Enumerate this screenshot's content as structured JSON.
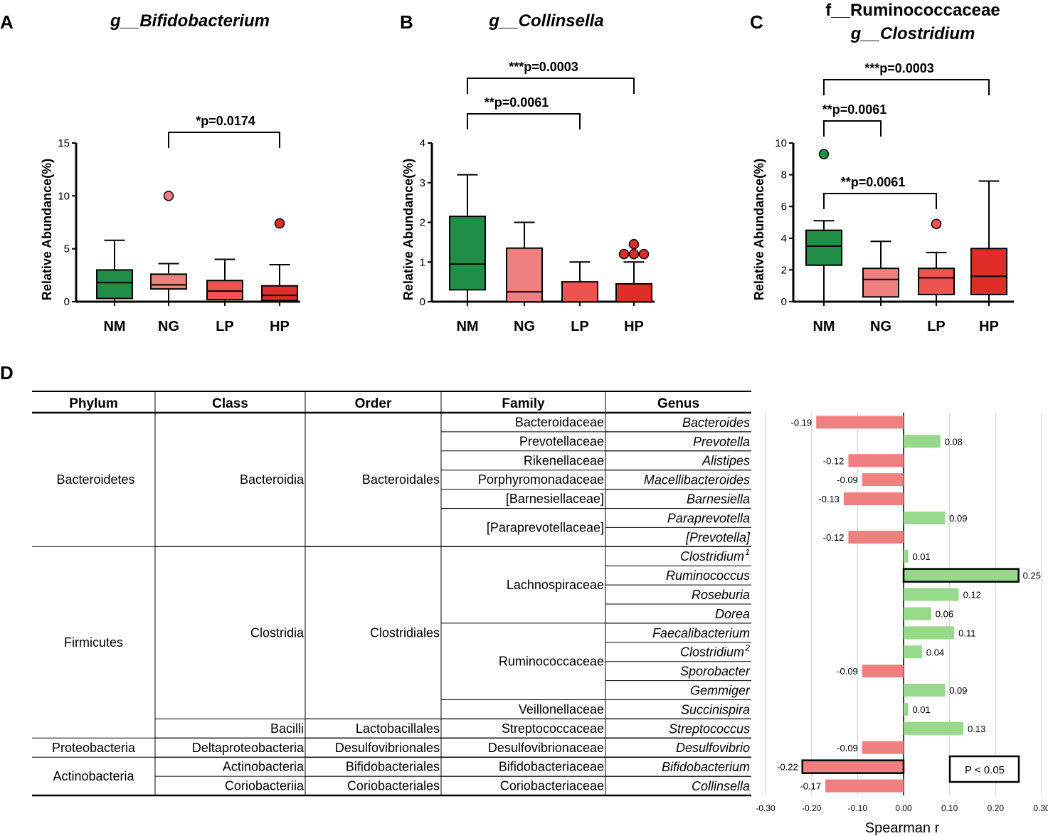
{
  "colors": {
    "NM": "#1f8f48",
    "NG": "#f08080",
    "LP": "#ef5350",
    "HP": "#e02d28",
    "neg": "#f08080",
    "pos": "#96d98a"
  },
  "panel_labels": [
    "A",
    "B",
    "C",
    "D"
  ],
  "chart_data": [
    {
      "type": "box",
      "panel": "A",
      "title_lines": [
        "g__Bifidobacterium"
      ],
      "title_italic": [
        true
      ],
      "ylabel": "Relative Abundance(%)",
      "ylim": [
        0,
        15
      ],
      "yticks": [
        0,
        5,
        10,
        15
      ],
      "ytick_labels": [
        "0",
        "5",
        "10",
        "15"
      ],
      "categories": [
        "NM",
        "NG",
        "LP",
        "HP"
      ],
      "boxes": [
        {
          "group": "NM",
          "min": 0,
          "q1": 0.3,
          "median": 1.8,
          "q3": 3.0,
          "max": 5.8,
          "outliers": []
        },
        {
          "group": "NG",
          "min": 0,
          "q1": 1.2,
          "median": 1.6,
          "q3": 2.6,
          "max": 3.6,
          "outliers": [
            10.0
          ]
        },
        {
          "group": "LP",
          "min": 0,
          "q1": 0.2,
          "median": 1.0,
          "q3": 2.0,
          "max": 4.0,
          "outliers": []
        },
        {
          "group": "HP",
          "min": 0,
          "q1": 0.1,
          "median": 0.6,
          "q3": 1.5,
          "max": 3.5,
          "outliers": [
            7.4
          ]
        }
      ],
      "significance": [
        {
          "from": "NG",
          "to": "HP",
          "label": "*p=0.0174",
          "level": 1
        }
      ]
    },
    {
      "type": "box",
      "panel": "B",
      "title_lines": [
        "g__Collinsella"
      ],
      "title_italic": [
        true
      ],
      "ylabel": "Relative Abundance(%)",
      "ylim": [
        0,
        4
      ],
      "yticks": [
        0,
        1,
        2,
        3,
        4
      ],
      "ytick_labels": [
        "0",
        "1",
        "2",
        "3",
        "4"
      ],
      "categories": [
        "NM",
        "NG",
        "LP",
        "HP"
      ],
      "boxes": [
        {
          "group": "NM",
          "min": 0,
          "q1": 0.3,
          "median": 0.95,
          "q3": 2.15,
          "max": 3.2,
          "outliers": []
        },
        {
          "group": "NG",
          "min": 0,
          "q1": 0.0,
          "median": 0.25,
          "q3": 1.35,
          "max": 2.0,
          "outliers": []
        },
        {
          "group": "LP",
          "min": 0,
          "q1": 0.0,
          "median": 0.0,
          "q3": 0.5,
          "max": 1.0,
          "outliers": []
        },
        {
          "group": "HP",
          "min": 0,
          "q1": 0.0,
          "median": 0.0,
          "q3": 0.45,
          "max": 1.0,
          "outliers": [
            1.2,
            1.2,
            1.2,
            1.45
          ]
        }
      ],
      "significance": [
        {
          "from": "NM",
          "to": "LP",
          "label": "**p=0.0061",
          "level": 1
        },
        {
          "from": "NM",
          "to": "HP",
          "label": "***p=0.0003",
          "level": 2
        }
      ]
    },
    {
      "type": "box",
      "panel": "C",
      "title_lines": [
        "f__Ruminococcaceae",
        "g__Clostridium"
      ],
      "title_italic": [
        false,
        true
      ],
      "ylabel": "Relative Abundance(%)",
      "ylim": [
        0,
        10
      ],
      "yticks": [
        0,
        2,
        4,
        6,
        8,
        10
      ],
      "ytick_labels": [
        "0",
        "2",
        "4",
        "6",
        "8",
        "10"
      ],
      "categories": [
        "NM",
        "NG",
        "LP",
        "HP"
      ],
      "boxes": [
        {
          "group": "NM",
          "min": 0,
          "q1": 2.3,
          "median": 3.5,
          "q3": 4.5,
          "max": 5.1,
          "outliers": [
            9.3
          ]
        },
        {
          "group": "NG",
          "min": 0,
          "q1": 0.3,
          "median": 1.4,
          "q3": 2.1,
          "max": 3.8,
          "outliers": []
        },
        {
          "group": "LP",
          "min": 0,
          "q1": 0.45,
          "median": 1.5,
          "q3": 2.1,
          "max": 3.1,
          "outliers": [
            4.9
          ]
        },
        {
          "group": "HP",
          "min": 0,
          "q1": 0.45,
          "median": 1.6,
          "q3": 3.35,
          "max": 7.6,
          "outliers": []
        }
      ],
      "significance": [
        {
          "from": "NM",
          "to": "LP",
          "label": "**p=0.0061",
          "level": 1
        },
        {
          "from": "NM",
          "to": "NG",
          "label": "**p=0.0061",
          "level": 2
        },
        {
          "from": "NM",
          "to": "HP",
          "label": "***p=0.0003",
          "level": 3
        }
      ]
    },
    {
      "type": "table",
      "panel": "D",
      "columns": [
        "Phylum",
        "Class",
        "Order",
        "Family",
        "Genus"
      ],
      "groups": {
        "phylum": [
          {
            "label": "Bacteroidetes",
            "rows": [
              0,
              6
            ]
          },
          {
            "label": "Firmicutes",
            "rows": [
              7,
              16
            ]
          },
          {
            "label": "Proteobacteria",
            "rows": [
              17,
              17
            ]
          },
          {
            "label": "Actinobacteria",
            "rows": [
              18,
              19
            ]
          }
        ],
        "class": [
          {
            "label": "Bacteroidia",
            "rows": [
              0,
              6
            ]
          },
          {
            "label": "Clostridia",
            "rows": [
              7,
              15
            ]
          },
          {
            "label": "Bacilli",
            "rows": [
              16,
              16
            ]
          },
          {
            "label": "Deltaproteobacteria",
            "rows": [
              17,
              17
            ]
          },
          {
            "label": "Actinobacteria",
            "rows": [
              18,
              18
            ]
          },
          {
            "label": "Coriobacteriia",
            "rows": [
              19,
              19
            ]
          }
        ],
        "order": [
          {
            "label": "Bacteroidales",
            "rows": [
              0,
              6
            ]
          },
          {
            "label": "Clostridiales",
            "rows": [
              7,
              15
            ]
          },
          {
            "label": "Lactobacillales",
            "rows": [
              16,
              16
            ]
          },
          {
            "label": "Desulfovibrionales",
            "rows": [
              17,
              17
            ]
          },
          {
            "label": "Bifidobacteriales",
            "rows": [
              18,
              18
            ]
          },
          {
            "label": "Coriobacteriales",
            "rows": [
              19,
              19
            ]
          }
        ],
        "family": [
          {
            "label": "Bacteroidaceae",
            "rows": [
              0,
              0
            ]
          },
          {
            "label": "Prevotellaceae",
            "rows": [
              1,
              1
            ]
          },
          {
            "label": "Rikenellaceae",
            "rows": [
              2,
              2
            ]
          },
          {
            "label": "Porphyromonadaceae",
            "rows": [
              3,
              3
            ]
          },
          {
            "label": "[Barnesiellaceae]",
            "rows": [
              4,
              4
            ]
          },
          {
            "label": "[Paraprevotellaceae]",
            "rows": [
              5,
              6
            ]
          },
          {
            "label": "Lachnospiraceae",
            "rows": [
              7,
              10
            ]
          },
          {
            "label": "Ruminococcaceae",
            "rows": [
              11,
              14
            ]
          },
          {
            "label": "Veillonellaceae",
            "rows": [
              15,
              15
            ]
          },
          {
            "label": "Streptococcaceae",
            "rows": [
              16,
              16
            ]
          },
          {
            "label": "Desulfovibrionaceae",
            "rows": [
              17,
              17
            ]
          },
          {
            "label": "Bifidobacteriaceae",
            "rows": [
              18,
              18
            ]
          },
          {
            "label": "Coriobacteriaceae",
            "rows": [
              19,
              19
            ]
          }
        ]
      },
      "genus": [
        {
          "name": "Bacteroides",
          "sup": "",
          "r": -0.19,
          "label": "-0.19",
          "highlight": false
        },
        {
          "name": "Prevotella",
          "sup": "",
          "r": 0.08,
          "label": "0.08",
          "highlight": false
        },
        {
          "name": "Alistipes",
          "sup": "",
          "r": -0.12,
          "label": "-0.12",
          "highlight": false
        },
        {
          "name": "Macellibacteroides",
          "sup": "",
          "r": -0.09,
          "label": "-0.09",
          "highlight": false
        },
        {
          "name": "Barnesiella",
          "sup": "",
          "r": -0.13,
          "label": "-0.13",
          "highlight": false
        },
        {
          "name": "Paraprevotella",
          "sup": "",
          "r": 0.09,
          "label": "0.09",
          "highlight": false
        },
        {
          "name": "[Prevotella]",
          "sup": "",
          "r": -0.12,
          "label": "-0.12",
          "highlight": false
        },
        {
          "name": "Clostridium",
          "sup": "1",
          "r": 0.01,
          "label": "0.01",
          "highlight": false
        },
        {
          "name": "Ruminococcus",
          "sup": "",
          "r": 0.25,
          "label": "0.25",
          "highlight": true
        },
        {
          "name": "Roseburia",
          "sup": "",
          "r": 0.12,
          "label": "0.12",
          "highlight": false
        },
        {
          "name": "Dorea",
          "sup": "",
          "r": 0.06,
          "label": "0.06",
          "highlight": false
        },
        {
          "name": "Faecalibacterium",
          "sup": "",
          "r": 0.11,
          "label": "0.11",
          "highlight": false
        },
        {
          "name": "Clostridium",
          "sup": "2",
          "r": 0.04,
          "label": "0.04",
          "highlight": false
        },
        {
          "name": "Sporobacter",
          "sup": "",
          "r": -0.09,
          "label": "-0.09",
          "highlight": false
        },
        {
          "name": "Gemmiger",
          "sup": "",
          "r": 0.09,
          "label": "0.09",
          "highlight": false
        },
        {
          "name": "Succinispira",
          "sup": "",
          "r": 0.01,
          "label": "0.01",
          "highlight": false
        },
        {
          "name": "Streptococcus",
          "sup": "",
          "r": 0.13,
          "label": "0.13",
          "highlight": false
        },
        {
          "name": "Desulfovibrio",
          "sup": "",
          "r": -0.09,
          "label": "-0.09",
          "highlight": false
        },
        {
          "name": "Bifidobacterium",
          "sup": "",
          "r": -0.22,
          "label": "-0.22",
          "highlight": true
        },
        {
          "name": "Collinsella",
          "sup": "",
          "r": -0.17,
          "label": "-0.17",
          "highlight": false
        }
      ]
    },
    {
      "type": "bar",
      "panel": "D",
      "orientation": "horizontal",
      "xlabel": "Spearman r",
      "xlim": [
        -0.3,
        0.3
      ],
      "xticks": [
        -0.3,
        -0.2,
        -0.1,
        0,
        0.1,
        0.2,
        0.3
      ],
      "xtick_labels": [
        "-0.30",
        "-0.20",
        "-0.10",
        "0.00",
        "0.10",
        "0.20",
        "0.30"
      ],
      "legend": "P < 0.05",
      "legend_position": "bottom-right",
      "values_source": "table genus r"
    }
  ]
}
